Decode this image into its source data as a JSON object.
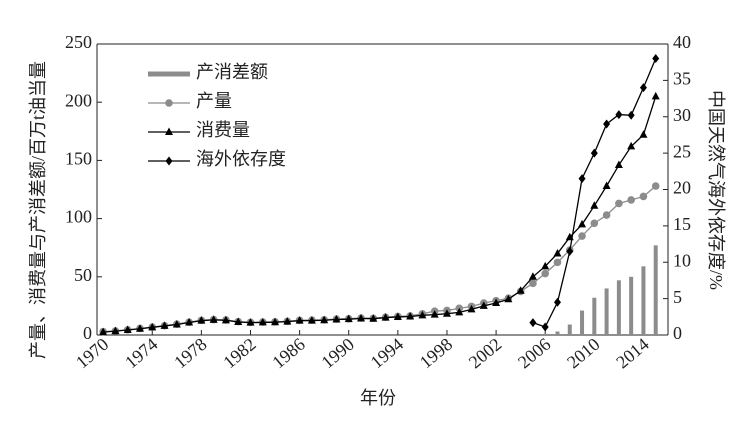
{
  "chart_data": {
    "type": "combo",
    "xlabel": "年份",
    "ylabel": "产量、消费量与产消差额/百万t油当量",
    "y2label": "中国天然气海外依存度/%",
    "x": [
      1970,
      1971,
      1972,
      1973,
      1974,
      1975,
      1976,
      1977,
      1978,
      1979,
      1980,
      1981,
      1982,
      1983,
      1984,
      1985,
      1986,
      1987,
      1988,
      1989,
      1990,
      1991,
      1992,
      1993,
      1994,
      1995,
      1996,
      1997,
      1998,
      1999,
      2000,
      2001,
      2002,
      2003,
      2004,
      2005,
      2006,
      2007,
      2008,
      2009,
      2010,
      2011,
      2012,
      2013,
      2014,
      2015
    ],
    "xlim": [
      1969.5,
      2016
    ],
    "xticks": [
      1970,
      1974,
      1978,
      1982,
      1986,
      1990,
      1994,
      1998,
      2002,
      2006,
      2010,
      2014
    ],
    "ylim": [
      0,
      250
    ],
    "yticks": [
      0,
      50,
      100,
      150,
      200,
      250
    ],
    "y2lim": [
      0,
      40
    ],
    "y2ticks": [
      0,
      5,
      10,
      15,
      20,
      25,
      30,
      35,
      40
    ],
    "legend": "upper left",
    "series": [
      {
        "name": "产消差额",
        "type": "bar",
        "color": "#8c8c8c",
        "values": [
          null,
          null,
          null,
          null,
          null,
          null,
          null,
          null,
          null,
          null,
          null,
          null,
          null,
          null,
          null,
          null,
          null,
          null,
          null,
          null,
          null,
          null,
          null,
          null,
          null,
          null,
          null,
          null,
          null,
          null,
          null,
          null,
          null,
          null,
          null,
          null,
          1,
          3,
          9,
          21,
          32,
          40,
          47,
          50,
          59,
          77
        ]
      },
      {
        "name": "产量",
        "type": "line",
        "marker": "circle",
        "color": "#8c8c8c",
        "values": [
          2.9,
          3.5,
          4.5,
          5.6,
          6.8,
          8.0,
          9.3,
          11.0,
          12.6,
          13.3,
          12.9,
          11.5,
          10.9,
          11.1,
          11.3,
          11.8,
          12.6,
          12.8,
          13.1,
          13.7,
          14.0,
          14.6,
          14.4,
          15.3,
          16.0,
          16.4,
          18.2,
          20.5,
          21.1,
          22.9,
          24.6,
          27.4,
          29.5,
          31.6,
          37.4,
          44.4,
          52.8,
          62.4,
          73,
          85,
          96,
          103,
          113,
          116,
          119,
          128
        ]
      },
      {
        "name": "消费量",
        "type": "line",
        "marker": "triangle",
        "color": "#000000",
        "values": [
          2.5,
          3.3,
          4.3,
          5.4,
          6.6,
          7.8,
          9.0,
          10.7,
          12.3,
          13.0,
          12.6,
          11.2,
          10.6,
          10.8,
          11.0,
          11.5,
          12.3,
          12.4,
          12.7,
          13.3,
          13.6,
          14.2,
          14.0,
          14.9,
          15.5,
          15.9,
          16.9,
          17.5,
          18.3,
          19.4,
          22.0,
          25.0,
          27.5,
          30.7,
          38,
          50,
          59,
          70,
          84,
          95,
          111,
          128,
          146,
          162,
          172,
          205
        ]
      },
      {
        "name": "海外依存度",
        "type": "line",
        "marker": "diamond",
        "color": "#000000",
        "axis": "y2",
        "values": [
          null,
          null,
          null,
          null,
          null,
          null,
          null,
          null,
          null,
          null,
          null,
          null,
          null,
          null,
          null,
          null,
          null,
          null,
          null,
          null,
          null,
          null,
          null,
          null,
          null,
          null,
          null,
          null,
          null,
          null,
          null,
          null,
          null,
          null,
          null,
          1.7,
          1.1,
          4.5,
          11.5,
          21.5,
          25,
          29,
          30.3,
          30.2,
          34,
          38
        ]
      }
    ]
  }
}
